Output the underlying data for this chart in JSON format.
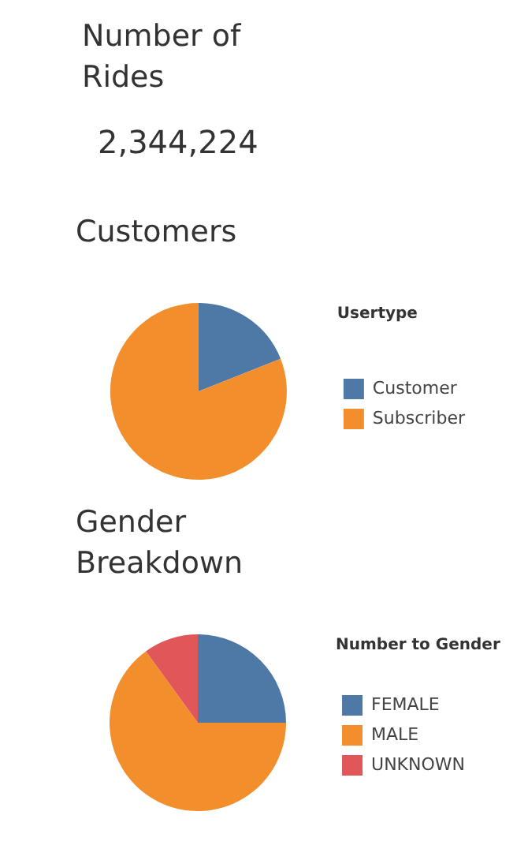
{
  "chart_data": [
    {
      "type": "other",
      "title": "Number of Rides",
      "annotations": [
        "2,344,224"
      ]
    },
    {
      "type": "pie",
      "title": "Customers",
      "legend_title": "Usertype",
      "legend": "right",
      "categories": [
        "Customer",
        "Subscriber"
      ],
      "values": [
        19,
        81
      ],
      "colors": [
        "#4e79a7",
        "#f28e2b"
      ]
    },
    {
      "type": "pie",
      "title": "Gender Breakdown",
      "legend_title": "Number to Gender",
      "legend": "right",
      "categories": [
        "FEMALE",
        "MALE",
        "UNKNOWN"
      ],
      "values": [
        25,
        65,
        10
      ],
      "colors": [
        "#4e79a7",
        "#f28e2b",
        "#e15759"
      ]
    }
  ]
}
